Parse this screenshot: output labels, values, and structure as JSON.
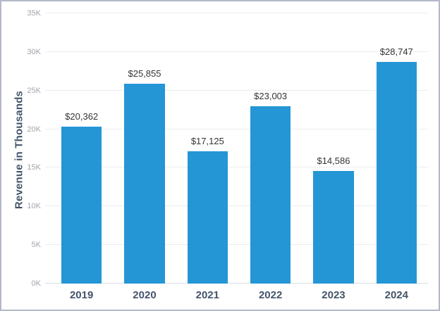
{
  "chart_data": {
    "type": "bar",
    "categories": [
      "2019",
      "2020",
      "2021",
      "2022",
      "2023",
      "2024"
    ],
    "values": [
      20362,
      25855,
      17125,
      23003,
      14586,
      28747
    ],
    "value_labels": [
      "$20,362",
      "$25,855",
      "$17,125",
      "$23,003",
      "$14,586",
      "$28,747"
    ],
    "title": "",
    "xlabel": "",
    "ylabel": "Revenue in Thousands",
    "ylim": [
      0,
      35000
    ],
    "ytick_step": 5000,
    "ytick_labels": [
      "0K",
      "5K",
      "10K",
      "15K",
      "20K",
      "25K",
      "30K",
      "35K"
    ],
    "grid": true,
    "legend": "none",
    "colors": {
      "bar": "#2496d5",
      "axis_title": "#44546a",
      "category_label": "#44546a",
      "value_label": "#333333",
      "tick_label": "#a0a4ab",
      "gridline": "#e9edf2",
      "frame_border": "#b3b8c9"
    }
  }
}
